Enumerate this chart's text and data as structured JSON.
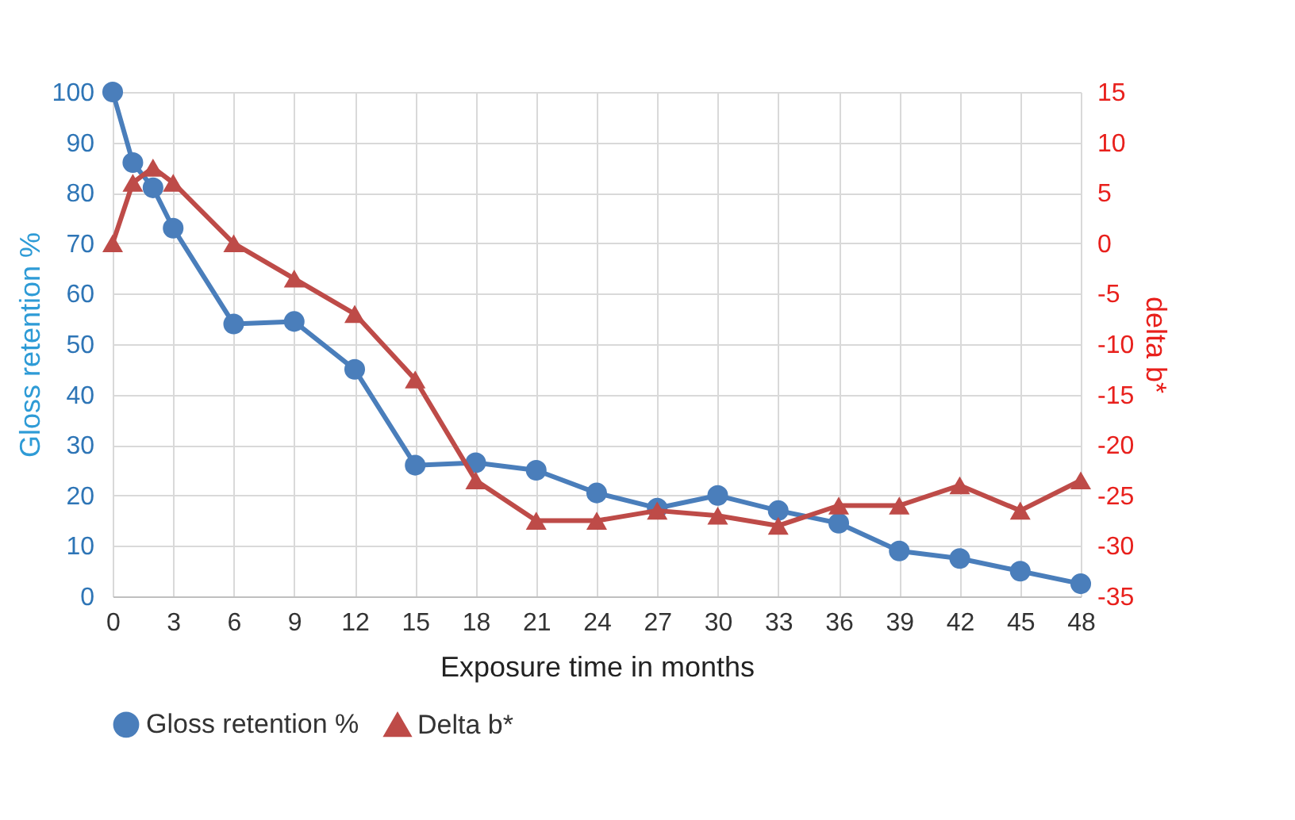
{
  "chart_data": {
    "type": "line",
    "xlabel": "Exposure time in months",
    "ylabel": "Gloss retention %",
    "y2label": "delta b*",
    "x": [
      0,
      1,
      2,
      3,
      6,
      9,
      12,
      15,
      18,
      21,
      24,
      27,
      30,
      33,
      36,
      39,
      42,
      45,
      48
    ],
    "series": [
      {
        "name": "Gloss retention %",
        "color": "#4a7ebb",
        "marker": "circle",
        "values": [
          100,
          86,
          81,
          73,
          54,
          54.5,
          45,
          26,
          26.5,
          25,
          20.5,
          17.5,
          20,
          17,
          14.5,
          9,
          7.5,
          5,
          2.5
        ]
      },
      {
        "name": "Delta b*",
        "color": "#be4b48",
        "marker": "triangle",
        "axis": "y2",
        "values": [
          0,
          6,
          7.5,
          6,
          0,
          -3.5,
          -7,
          -13.5,
          -23.5,
          -27.5,
          -27.5,
          -26.5,
          -27,
          -28,
          -26,
          -26,
          -24,
          -26.5,
          -23.5
        ]
      }
    ],
    "xlim": [
      0,
      48
    ],
    "xticks": [
      0,
      3,
      6,
      9,
      12,
      15,
      18,
      21,
      24,
      27,
      30,
      33,
      36,
      39,
      42,
      45,
      48
    ],
    "ylim": [
      0,
      100
    ],
    "yticks": [
      0,
      10,
      20,
      30,
      40,
      50,
      60,
      70,
      80,
      90,
      100
    ],
    "y2lim": [
      -35,
      15
    ],
    "y2ticks": [
      -35,
      -30,
      -25,
      -20,
      -15,
      -10,
      -5,
      0,
      5,
      10,
      15
    ],
    "grid": true,
    "legend": "bottom"
  }
}
